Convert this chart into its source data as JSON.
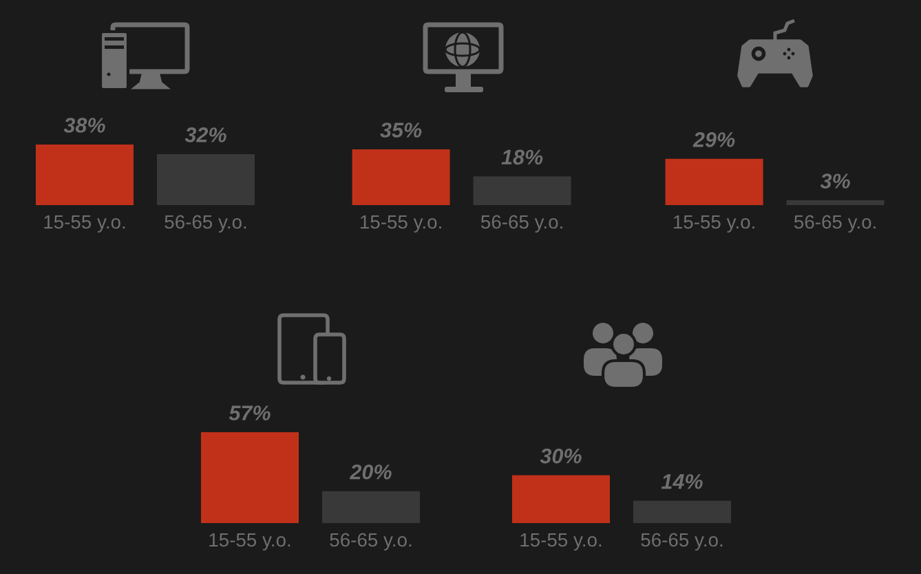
{
  "chart_data": [
    {
      "type": "bar",
      "categories": [
        "15-55 y.o.",
        "56-65 y.o."
      ],
      "values": [
        38,
        32
      ],
      "colors": [
        "#c1311a",
        "#393939"
      ],
      "value_labels": [
        "38%",
        "32%"
      ],
      "tick_labels": "x"
    },
    {
      "type": "bar",
      "categories": [
        "15-55 y.o.",
        "56-65 y.o."
      ],
      "values": [
        35,
        18
      ],
      "colors": [
        "#c1311a",
        "#393939"
      ],
      "value_labels": [
        "35%",
        "18%"
      ],
      "tick_labels": "x"
    },
    {
      "type": "bar",
      "categories": [
        "15-55 y.o.",
        "56-65 y.o."
      ],
      "values": [
        29,
        3
      ],
      "colors": [
        "#c1311a",
        "#393939"
      ],
      "value_labels": [
        "29%",
        "3%"
      ],
      "tick_labels": "x"
    },
    {
      "type": "bar",
      "categories": [
        "15-55 y.o.",
        "56-65 y.o."
      ],
      "values": [
        57,
        20
      ],
      "colors": [
        "#c1311a",
        "#393939"
      ],
      "value_labels": [
        "57%",
        "20%"
      ],
      "tick_labels": "x"
    },
    {
      "type": "bar",
      "categories": [
        "15-55 y.o.",
        "56-65 y.o."
      ],
      "values": [
        30,
        14
      ],
      "colors": [
        "#c1311a",
        "#393939"
      ],
      "value_labels": [
        "30%",
        "14%"
      ],
      "tick_labels": "x"
    }
  ]
}
